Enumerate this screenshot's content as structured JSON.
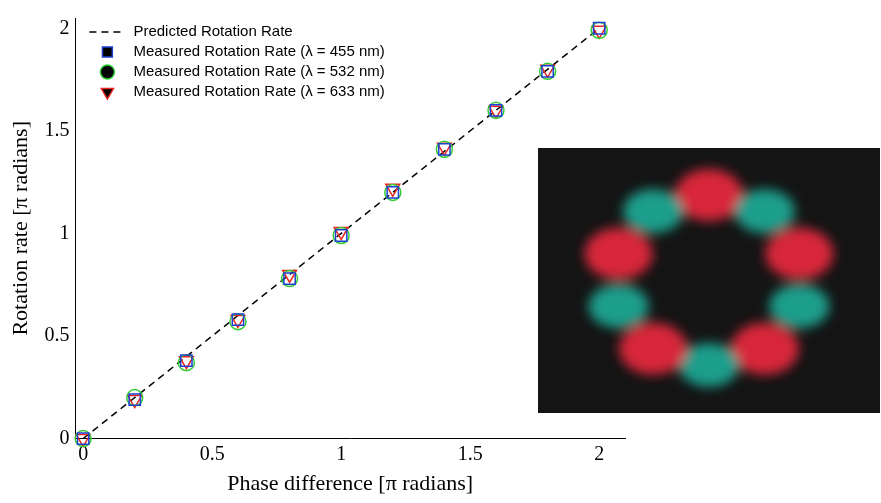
{
  "chart_data": {
    "type": "scatter",
    "x_label": "Phase difference [π radians]",
    "y_label": "Rotation rate [π radians]",
    "x": [
      0,
      0.2,
      0.4,
      0.6,
      0.8,
      1.0,
      1.2,
      1.4,
      1.6,
      1.8,
      2.0
    ],
    "series": [
      {
        "name": "Predicted Rotation Rate",
        "type": "line",
        "line_style": "dashed",
        "color": "#000000",
        "values": [
          0,
          0.2,
          0.4,
          0.6,
          0.8,
          1.0,
          1.2,
          1.4,
          1.6,
          1.8,
          2.0
        ]
      },
      {
        "name": "Measured Rotation Rate (λ = 455 nm)",
        "type": "scatter",
        "marker": "square",
        "color": "#1f3fd0",
        "values": [
          0,
          0.19,
          0.38,
          0.58,
          0.78,
          0.99,
          1.2,
          1.41,
          1.6,
          1.79,
          2.0
        ]
      },
      {
        "name": "Measured Rotation Rate (λ = 532 nm)",
        "type": "scatter",
        "marker": "circle",
        "color": "#33cc33",
        "values": [
          0,
          0.2,
          0.37,
          0.57,
          0.78,
          0.99,
          1.2,
          1.41,
          1.6,
          1.79,
          1.99
        ]
      },
      {
        "name": "Measured Rotation Rate (λ = 633 nm)",
        "type": "scatter",
        "marker": "triangle_down",
        "color": "#e8271f",
        "values": [
          0,
          0.19,
          0.38,
          0.58,
          0.8,
          1.01,
          1.22,
          1.42,
          1.6,
          1.8,
          1.99
        ]
      }
    ],
    "xlim": [
      -0.03,
      2.1
    ],
    "ylim": [
      0,
      2.05
    ],
    "xticks": [
      0,
      0.5,
      1,
      1.5,
      2
    ],
    "yticks": [
      0,
      0.5,
      1,
      1.5,
      2
    ],
    "grid": false,
    "legend": "upper left"
  }
}
